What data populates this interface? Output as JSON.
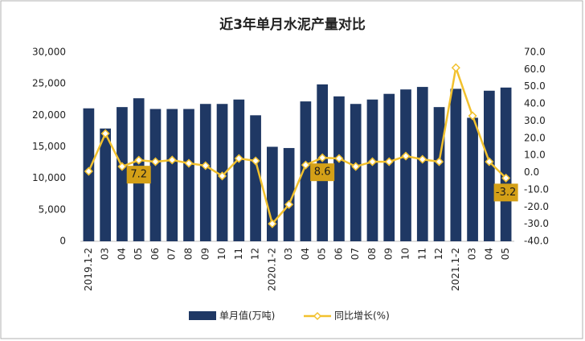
{
  "chart_data": {
    "type": "bar",
    "title": "近3年单月水泥产量对比",
    "categories": [
      "2019.1-2",
      "03",
      "04",
      "05",
      "06",
      "07",
      "08",
      "09",
      "10",
      "11",
      "12",
      "2020.1-2",
      "03",
      "04",
      "05",
      "06",
      "07",
      "08",
      "09",
      "10",
      "11",
      "12",
      "2021.1-2",
      "03",
      "04",
      "05"
    ],
    "series": [
      {
        "name": "单月值(万吨)",
        "type": "bar",
        "color": "#1f3864",
        "values": [
          21100,
          17900,
          21300,
          22700,
          21000,
          21000,
          21000,
          21800,
          21800,
          22500,
          20000,
          15000,
          14800,
          22200,
          24900,
          23000,
          21800,
          22500,
          23400,
          24100,
          24500,
          21300,
          24200,
          19600,
          23900,
          24400
        ]
      },
      {
        "name": "同比增长(%)",
        "type": "line",
        "axis": "y2",
        "color": "#f2c12e",
        "values": [
          0.7,
          22.7,
          3.5,
          7.2,
          6.3,
          7.3,
          5.4,
          4,
          -2,
          8.2,
          6.8,
          -29.8,
          -18.6,
          4.4,
          8.6,
          8.2,
          3.5,
          6.3,
          6.3,
          9.6,
          7.7,
          6.3,
          61,
          33,
          6.3,
          -3.2
        ],
        "labeled_points": [
          3,
          14,
          25
        ]
      }
    ],
    "ylim": [
      0,
      30000
    ],
    "yticks": [
      0,
      {
        "value": 5000,
        "label": "5,000"
      },
      {
        "value": 10000,
        "label": "10,000"
      },
      {
        "value": 15000,
        "label": "15,000"
      },
      {
        "value": 20000,
        "label": "20,000"
      },
      {
        "value": 25000,
        "label": "25,000"
      },
      {
        "value": 30000,
        "label": "30,000"
      }
    ],
    "y2lim": [
      -40,
      70
    ],
    "y2ticks": [
      {
        "value": -40,
        "label": "-40.0"
      },
      {
        "value": -30,
        "label": "-30.0"
      },
      {
        "value": -20,
        "label": "-20.0"
      },
      {
        "value": -10,
        "label": "-10.0"
      },
      {
        "value": 0,
        "label": "0.0"
      },
      {
        "value": 10,
        "label": "10.0"
      },
      {
        "value": 20,
        "label": "20.0"
      },
      {
        "value": 30,
        "label": "30.0"
      },
      {
        "value": 40,
        "label": "40.0"
      },
      {
        "value": 50,
        "label": "50.0"
      },
      {
        "value": 60,
        "label": "60.0"
      },
      {
        "value": 70,
        "label": "70.0"
      }
    ],
    "grid": false
  }
}
